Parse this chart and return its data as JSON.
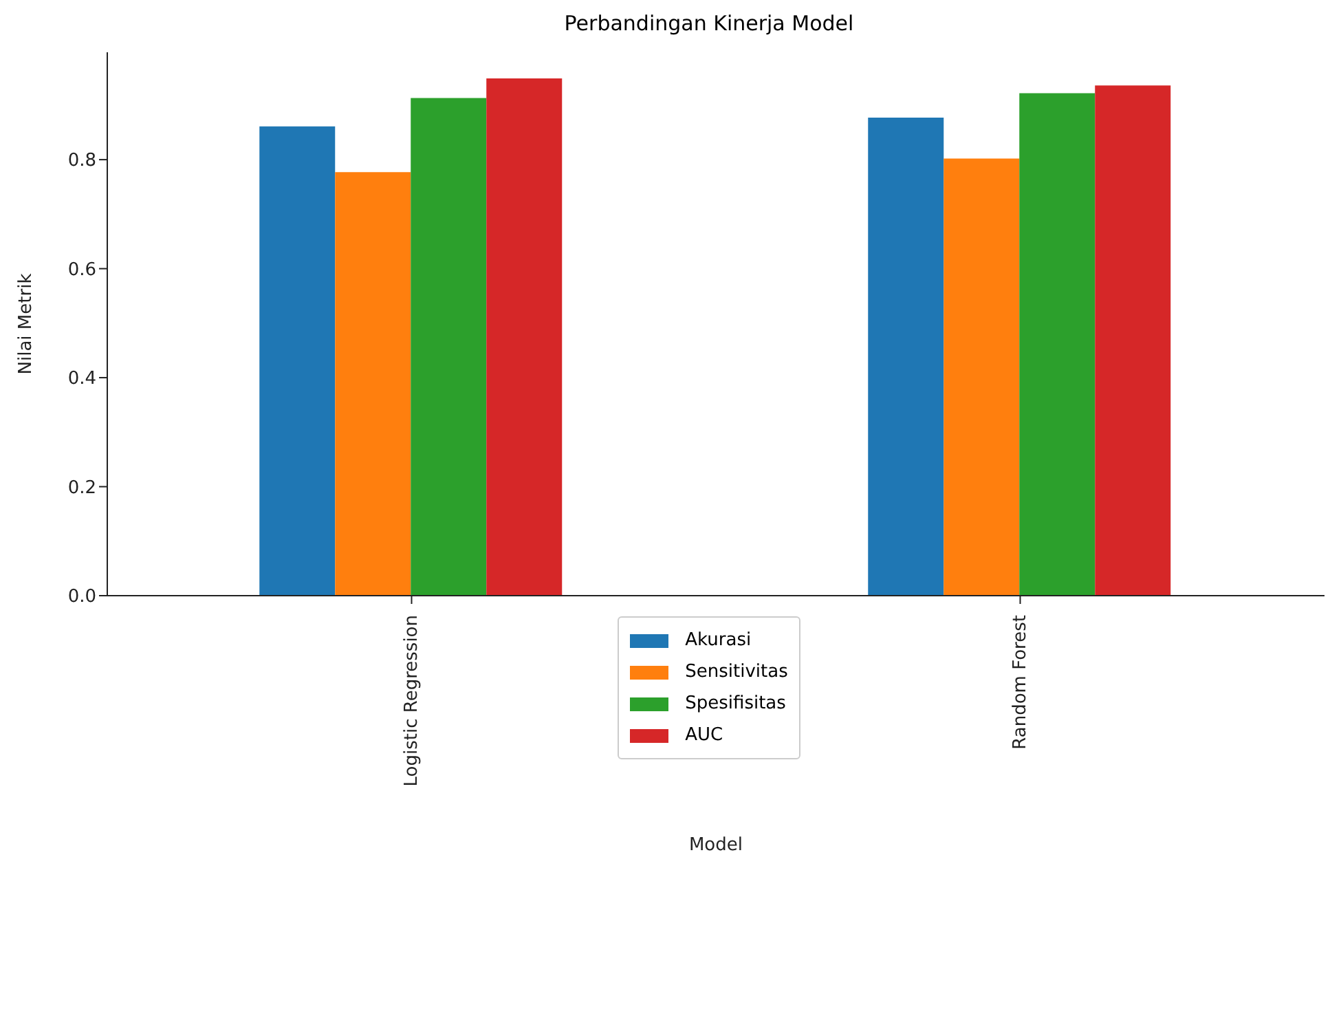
{
  "chart_data": {
    "type": "bar",
    "title": "Perbandingan Kinerja Model",
    "xlabel": "Model",
    "ylabel": "Nilai Metrik",
    "categories": [
      "Logistic Regression",
      "Random Forest"
    ],
    "series": [
      {
        "name": "Akurasi",
        "color": "#1f77b4",
        "values": [
          0.861,
          0.877
        ]
      },
      {
        "name": "Sensitivitas",
        "color": "#ff7f0e",
        "values": [
          0.777,
          0.802
        ]
      },
      {
        "name": "Spesifisitas",
        "color": "#2ca02c",
        "values": [
          0.913,
          0.922
        ]
      },
      {
        "name": "AUC",
        "color": "#d62728",
        "values": [
          0.949,
          0.936
        ]
      }
    ],
    "ylim": [
      0,
      0.997
    ],
    "yticks": [
      {
        "value": 0,
        "label": "0.0"
      },
      {
        "value": 0.2,
        "label": "0.2"
      },
      {
        "value": 0.4,
        "label": "0.4"
      },
      {
        "value": 0.6,
        "label": "0.6"
      },
      {
        "value": 0.8,
        "label": "0.8"
      }
    ],
    "grid": false,
    "legend": "bottom"
  }
}
